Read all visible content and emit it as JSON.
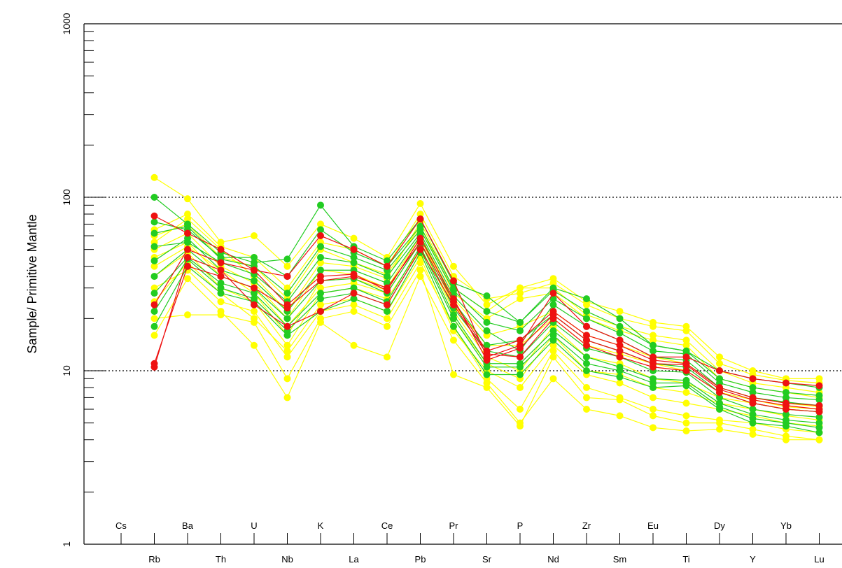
{
  "chart_data": {
    "type": "line",
    "title": "",
    "xlabel": "",
    "ylabel": "Sample/ Primitive Mantle",
    "yscale": "log",
    "ylim": [
      1,
      1000
    ],
    "ytick_labels": [
      "1",
      "10",
      "100",
      "1000"
    ],
    "reference_lines": [
      10,
      100
    ],
    "grid": false,
    "legend": "none",
    "categories": [
      "Cs",
      "Rb",
      "Ba",
      "Th",
      "U",
      "Nb",
      "K",
      "La",
      "Ce",
      "Pb",
      "Pr",
      "Sr",
      "P",
      "Nd",
      "Zr",
      "Sm",
      "Eu",
      "Ti",
      "Dy",
      "Y",
      "Yb",
      "Lu"
    ],
    "colors": {
      "yellow": "#ffff00",
      "green": "#22cc22",
      "red": "#ee1111"
    },
    "series": [
      {
        "color": "yellow",
        "values": [
          null,
          130,
          98,
          55,
          60,
          40,
          70,
          58,
          45,
          92,
          40,
          24,
          30,
          34,
          25,
          22,
          19,
          18,
          12,
          10,
          9,
          9
        ]
      },
      {
        "color": "yellow",
        "values": [
          null,
          16,
          34,
          22,
          14,
          7,
          19,
          14,
          12,
          35,
          15,
          8.5,
          5,
          9,
          6,
          5.5,
          4.7,
          4.5,
          4.6,
          4.3,
          4,
          4
        ]
      },
      {
        "color": "yellow",
        "values": [
          null,
          20,
          21,
          21,
          19,
          9,
          20,
          22,
          18,
          38,
          9.5,
          8,
          4.8,
          12,
          7,
          6.8,
          5.5,
          5,
          5,
          4.6,
          4.2,
          4
        ]
      },
      {
        "color": "yellow",
        "values": [
          null,
          30,
          38,
          25,
          22,
          12,
          22,
          24,
          20,
          42,
          18,
          9,
          6,
          13,
          8,
          7,
          6,
          5.5,
          5.2,
          5,
          4.6,
          4.4
        ]
      },
      {
        "color": "yellow",
        "values": [
          null,
          45,
          55,
          35,
          30,
          18,
          30,
          32,
          28,
          55,
          22,
          12,
          10,
          18,
          12,
          11,
          9,
          8.5,
          7,
          6.5,
          6,
          5.8
        ]
      },
      {
        "color": "yellow",
        "values": [
          null,
          60,
          70,
          45,
          40,
          26,
          50,
          42,
          36,
          68,
          28,
          20,
          26,
          28,
          20,
          17,
          15,
          14,
          9,
          8,
          7.5,
          7
        ]
      },
      {
        "color": "yellow",
        "values": [
          null,
          55,
          75,
          50,
          35,
          22,
          42,
          40,
          34,
          72,
          30,
          22,
          30,
          30,
          21,
          18,
          16,
          15,
          10,
          8.5,
          8,
          7.5
        ]
      },
      {
        "color": "yellow",
        "values": [
          null,
          35,
          48,
          30,
          25,
          14,
          28,
          30,
          26,
          50,
          20,
          11,
          9,
          16,
          10,
          9.5,
          8,
          7.5,
          6.5,
          6,
          5.5,
          5.2
        ]
      },
      {
        "color": "yellow",
        "values": [
          null,
          50,
          62,
          40,
          32,
          20,
          38,
          36,
          30,
          60,
          26,
          16,
          18,
          22,
          16,
          14,
          12,
          11,
          8,
          7,
          6.5,
          6.2
        ]
      },
      {
        "color": "yellow",
        "values": [
          null,
          25,
          42,
          28,
          20,
          13,
          24,
          26,
          22,
          45,
          17,
          10,
          8,
          14,
          9.5,
          8.5,
          7,
          6.5,
          6,
          5.5,
          5,
          4.8
        ]
      },
      {
        "color": "yellow",
        "values": [
          null,
          40,
          52,
          38,
          28,
          16,
          33,
          34,
          29,
          58,
          24,
          14,
          14,
          20,
          14,
          12.5,
          11,
          10,
          7.5,
          6.8,
          6.2,
          6
        ]
      },
      {
        "color": "yellow",
        "values": [
          null,
          65,
          80,
          52,
          45,
          30,
          55,
          50,
          40,
          80,
          35,
          26,
          28,
          32,
          24,
          20,
          18,
          17,
          11,
          9.5,
          8.8,
          8.5
        ]
      },
      {
        "color": "green",
        "values": [
          null,
          100,
          70,
          48,
          42,
          44,
          90,
          52,
          43,
          75,
          32,
          27,
          19,
          30,
          26,
          20,
          14,
          13,
          10,
          9,
          8.5,
          8
        ]
      },
      {
        "color": "green",
        "values": [
          null,
          18,
          40,
          28,
          25,
          16,
          22,
          26,
          22,
          48,
          18,
          9.5,
          9.5,
          15,
          10,
          9.2,
          8,
          8.2,
          6,
          5,
          4.8,
          4.4
        ]
      },
      {
        "color": "green",
        "values": [
          null,
          28,
          45,
          32,
          28,
          18,
          28,
          30,
          25,
          52,
          21,
          11,
          11,
          17,
          12,
          10.5,
          9,
          8.8,
          6.5,
          5.6,
          5.2,
          5
        ]
      },
      {
        "color": "green",
        "values": [
          null,
          43,
          58,
          38,
          33,
          22,
          38,
          38,
          32,
          60,
          25,
          14,
          15,
          21,
          15,
          13,
          11,
          10.5,
          7.5,
          6.5,
          6,
          5.8
        ]
      },
      {
        "color": "green",
        "values": [
          null,
          72,
          65,
          45,
          45,
          35,
          65,
          48,
          40,
          68,
          30,
          22,
          19,
          29,
          22,
          18,
          14,
          13,
          9,
          8,
          7.5,
          7.2
        ]
      },
      {
        "color": "green",
        "values": [
          null,
          52,
          55,
          42,
          36,
          25,
          45,
          42,
          35,
          62,
          27,
          17,
          13,
          24,
          18,
          15,
          12,
          11.5,
          8,
          7,
          6.6,
          6.3
        ]
      },
      {
        "color": "green",
        "values": [
          null,
          35,
          50,
          35,
          30,
          20,
          33,
          34,
          28,
          55,
          23,
          13,
          12,
          19,
          13.5,
          12,
          10,
          9.8,
          7,
          6,
          5.6,
          5.4
        ]
      },
      {
        "color": "green",
        "values": [
          null,
          62,
          68,
          44,
          40,
          28,
          52,
          45,
          38,
          65,
          29,
          19,
          17,
          26,
          20,
          16.5,
          13,
          12.5,
          8.5,
          7.5,
          7,
          6.8
        ]
      },
      {
        "color": "green",
        "values": [
          null,
          22,
          44,
          30,
          26,
          17,
          26,
          28,
          24,
          50,
          20,
          10.5,
          10.5,
          16,
          11,
          10,
          8.5,
          8.5,
          6.2,
          5.3,
          5,
          4.7
        ]
      },
      {
        "color": "red",
        "values": [
          null,
          78,
          62,
          50,
          38,
          35,
          60,
          50,
          40,
          75,
          33,
          12,
          14,
          28,
          18,
          15,
          12,
          12,
          10,
          9,
          8.5,
          8.2
        ]
      },
      {
        "color": "red",
        "values": [
          null,
          11,
          40,
          35,
          30,
          23,
          33,
          35,
          30,
          55,
          25,
          13,
          15,
          22,
          16,
          14,
          11.5,
          11,
          8,
          7,
          6.5,
          6.3
        ]
      },
      {
        "color": "red",
        "values": [
          null,
          10.5,
          45,
          38,
          24,
          18,
          22,
          28,
          24,
          50,
          24,
          12.5,
          12,
          20,
          14,
          12,
          10.5,
          10,
          7.5,
          6.5,
          6,
          5.8
        ]
      },
      {
        "color": "red",
        "values": [
          null,
          24,
          50,
          42,
          38,
          24,
          35,
          36,
          29,
          58,
          26,
          11.5,
          13.5,
          21,
          15,
          13,
          11,
          10.8,
          7.8,
          6.8,
          6.3,
          6
        ]
      }
    ]
  }
}
